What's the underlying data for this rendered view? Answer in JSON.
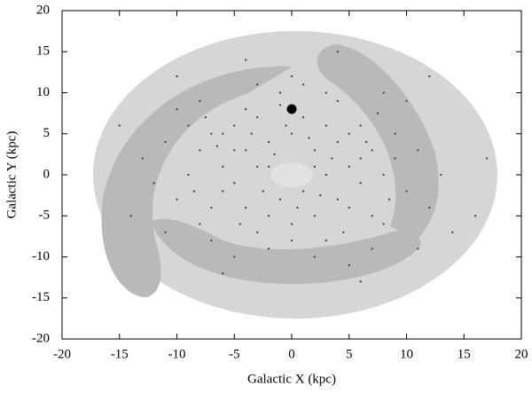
{
  "chart_data": {
    "type": "scatter",
    "xlabel": "Galactic X (kpc)",
    "ylabel": "Galactic Y (kpc)",
    "xlim": [
      -20,
      20
    ],
    "ylim": [
      -20,
      20
    ],
    "xticks": [
      -20,
      -15,
      -10,
      -5,
      0,
      5,
      10,
      15,
      20
    ],
    "yticks": [
      -20,
      -15,
      -10,
      -5,
      0,
      5,
      10,
      15,
      20
    ],
    "points": {
      "color": "#3a3a3a",
      "x": [
        -8,
        -7,
        -6,
        -5,
        -4,
        -3,
        -2,
        -1,
        0,
        1,
        2,
        3,
        4,
        5,
        6,
        7,
        8,
        9,
        -9,
        -10,
        10,
        -6,
        6,
        -4,
        4,
        -3,
        3,
        -2,
        2,
        -5,
        5,
        -7,
        7,
        -8,
        8,
        -3,
        3,
        -1,
        1,
        0,
        -2,
        2,
        -5,
        5,
        -6,
        6,
        -4,
        4,
        -1,
        1,
        0,
        -3,
        3,
        -9,
        9,
        -11,
        11,
        -12,
        12,
        -10,
        10,
        -7,
        7,
        -2,
        2,
        0,
        -5,
        5,
        -8,
        8,
        -13,
        13,
        -14,
        14,
        -6,
        6,
        -4,
        4,
        -1.5,
        1.5,
        -2.5,
        2.5,
        -3.5,
        3.5,
        -6.5,
        6.5,
        -8.5,
        8.5,
        -4.5,
        4.5,
        -7.5,
        7.5,
        -0.5,
        0.5,
        -11,
        11,
        -15,
        16,
        17,
        -10,
        12
      ],
      "y": [
        3,
        5,
        -2,
        6,
        -4,
        7,
        -5,
        8.5,
        -6,
        7,
        -5,
        6,
        -3,
        5,
        -1,
        3,
        0,
        2,
        0,
        -3,
        -2,
        1,
        2,
        3,
        4,
        1,
        0,
        4,
        3,
        -1,
        -4,
        -4,
        -5,
        -6,
        -6,
        -7,
        -8,
        -3,
        -2,
        5,
        1,
        1,
        3,
        1,
        5,
        6,
        8,
        9,
        10,
        11,
        12,
        11,
        10,
        6,
        5,
        4,
        3,
        -1,
        -4,
        8,
        9,
        -8,
        -9,
        -9,
        -10,
        -8,
        -10,
        -11,
        9,
        10,
        2,
        0,
        -5,
        -7,
        -12,
        -13,
        14,
        15,
        2.5,
        4.5,
        -2,
        -2.5,
        5,
        2,
        3.5,
        4,
        -2,
        -3,
        -6,
        -7,
        7,
        7.5,
        6,
        -4,
        -7,
        -9,
        6,
        -5,
        2,
        12,
        12
      ]
    },
    "marker": {
      "x": 0,
      "y": 8,
      "color": "#000000"
    }
  }
}
